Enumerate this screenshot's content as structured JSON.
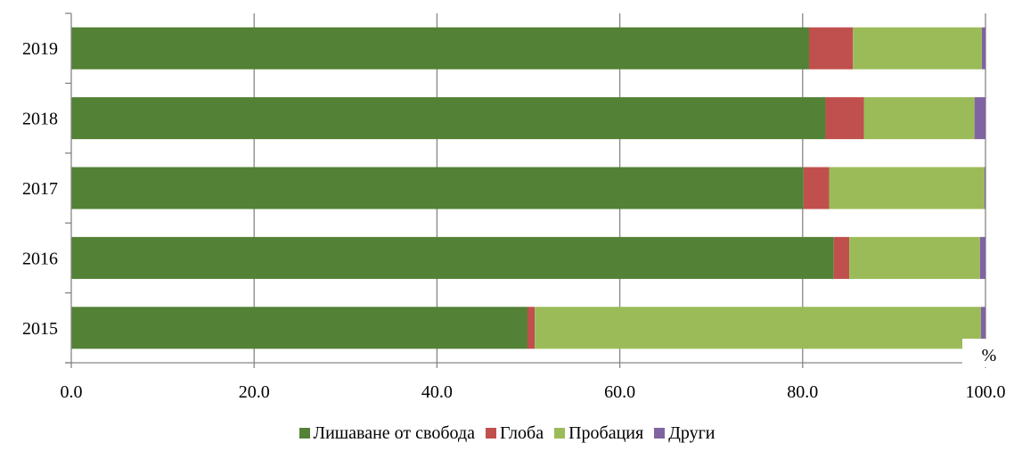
{
  "chart_data": {
    "type": "bar",
    "orientation": "horizontal",
    "stacked": true,
    "categories": [
      "2019",
      "2018",
      "2017",
      "2016",
      "2015"
    ],
    "series": [
      {
        "name": "Лишаване от свобода",
        "color": "#538135",
        "values": [
          80.7,
          82.5,
          80.1,
          83.4,
          49.9
        ]
      },
      {
        "name": "Глоба",
        "color": "#C0504D",
        "values": [
          4.8,
          4.2,
          2.8,
          1.7,
          0.8
        ]
      },
      {
        "name": "Пробация",
        "color": "#9BBB59",
        "values": [
          14.1,
          12.1,
          17.0,
          14.3,
          48.8
        ]
      },
      {
        "name": "Други",
        "color": "#8064A2",
        "values": [
          0.4,
          1.2,
          0.1,
          0.6,
          0.5
        ]
      }
    ],
    "xlim": [
      0,
      100
    ],
    "xticks": [
      "0.0",
      "20.0",
      "40.0",
      "60.0",
      "80.0",
      "100.0"
    ],
    "xunit": "%",
    "grid": "vertical",
    "legend_position": "bottom"
  }
}
